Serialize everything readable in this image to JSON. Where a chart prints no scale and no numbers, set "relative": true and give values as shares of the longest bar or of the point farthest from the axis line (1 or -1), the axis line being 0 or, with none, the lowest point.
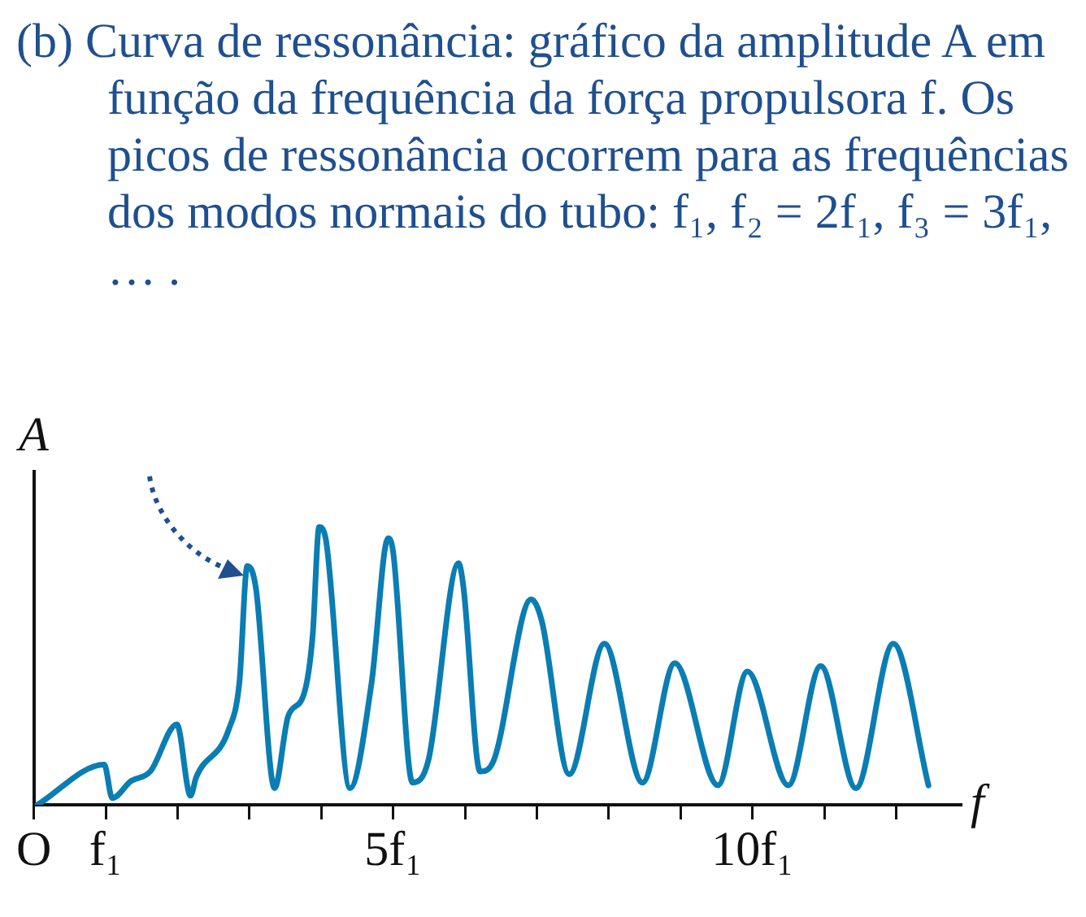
{
  "chart_data": {
    "type": "line",
    "title": "(b) Curva de ressonância: gráfico da amplitude A em função da frequência da força propulsora f. Os picos de ressonância ocorrem para as frequências dos modos normais do tubo: f₁, f₂ = 2f₁, f₃ = 3f₁, … .",
    "xlabel": "f",
    "ylabel": "A",
    "relative": true,
    "xlim": [
      0,
      12.9
    ],
    "xticks": [
      {
        "value": 0,
        "label": "O"
      },
      {
        "value": 1,
        "label": "f₁"
      },
      {
        "value": 2,
        "label": null
      },
      {
        "value": 3,
        "label": null
      },
      {
        "value": 4,
        "label": null
      },
      {
        "value": 5,
        "label": "5f₁"
      },
      {
        "value": 6,
        "label": null
      },
      {
        "value": 7,
        "label": null
      },
      {
        "value": 8,
        "label": null
      },
      {
        "value": 9,
        "label": null
      },
      {
        "value": 10,
        "label": "10f₁"
      },
      {
        "value": 11,
        "label": null
      },
      {
        "value": 12,
        "label": null
      }
    ],
    "x": [
      0.05,
      0.98,
      1.09,
      1.35,
      1.62,
      1.99,
      2.18,
      2.26,
      2.71,
      2.86,
      2.97,
      3.09,
      3.35,
      3.54,
      3.76,
      3.88,
      3.97,
      4.06,
      4.4,
      4.7,
      4.93,
      5.0,
      5.27,
      5.49,
      5.91,
      5.98,
      6.21,
      6.4,
      6.92,
      7.07,
      7.45,
      7.94,
      8.47,
      8.92,
      9.52,
      9.93,
      10.5,
      10.95,
      11.44,
      11.96,
      12.45
    ],
    "series": [
      {
        "color": "#0a7db3",
        "values": [
          0,
          0.145,
          0.024,
          0.085,
          0.12,
          0.29,
          0.033,
          0.1,
          0.27,
          0.44,
          0.86,
          0.78,
          0.06,
          0.32,
          0.4,
          0.61,
          1.0,
          0.96,
          0.06,
          0.44,
          0.96,
          0.91,
          0.08,
          0.16,
          0.87,
          0.78,
          0.12,
          0.16,
          0.74,
          0.66,
          0.11,
          0.58,
          0.08,
          0.51,
          0.07,
          0.48,
          0.07,
          0.5,
          0.06,
          0.58,
          0.07
        ]
      }
    ],
    "grid": false,
    "legend": false,
    "marker": "none",
    "line_style": "solid"
  }
}
